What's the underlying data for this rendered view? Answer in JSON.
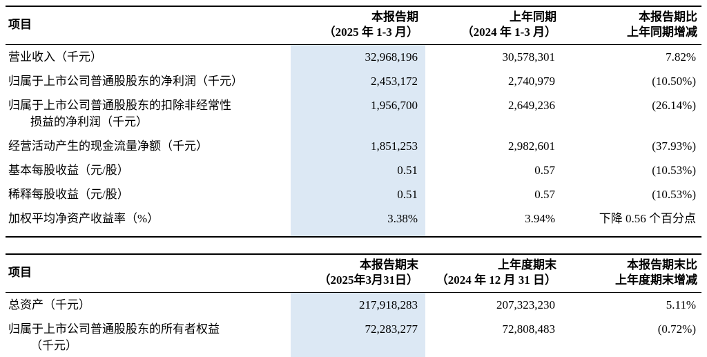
{
  "colors": {
    "highlight_column": "#dce8f4"
  },
  "table1": {
    "header": {
      "item": "项目",
      "current_line1": "本报告期",
      "current_line2": "（2025 年 1-3 月）",
      "prior_line1": "上年同期",
      "prior_line2": "（2024 年 1-3 月）",
      "change_line1": "本报告期比",
      "change_line2": "上年同期增减"
    },
    "rows": [
      {
        "label": "营业收入（千元）",
        "current": "32,968,196",
        "prior": "30,578,301",
        "change": "7.82%"
      },
      {
        "label": "归属于上市公司普通股股东的净利润（千元）",
        "current": "2,453,172",
        "prior": "2,740,979",
        "change": "(10.50%)"
      },
      {
        "label": "归属于上市公司普通股股东的扣除非经常性",
        "label2": "损益的净利润（千元）",
        "current": "1,956,700",
        "prior": "2,649,236",
        "change": "(26.14%)"
      },
      {
        "label": "经营活动产生的现金流量净额（千元）",
        "current": "1,851,253",
        "prior": "2,982,601",
        "change": "(37.93%)"
      },
      {
        "label": "基本每股收益（元/股）",
        "current": "0.51",
        "prior": "0.57",
        "change": "(10.53%)"
      },
      {
        "label": "稀释每股收益（元/股）",
        "current": "0.51",
        "prior": "0.57",
        "change": "(10.53%)"
      },
      {
        "label": "加权平均净资产收益率（%）",
        "current": "3.38%",
        "prior": "3.94%",
        "change": "下降 0.56 个百分点"
      }
    ]
  },
  "table2": {
    "header": {
      "item": "项目",
      "current_line1": "本报告期末",
      "current_line2": "（2025年3月31日）",
      "prior_line1": "上年度期末",
      "prior_line2": "（2024 年 12 月 31 日）",
      "change_line1": "本报告期末比",
      "change_line2": "上年度期末增减"
    },
    "rows": [
      {
        "label": "总资产（千元）",
        "current": "217,918,283",
        "prior": "207,323,230",
        "change": "5.11%"
      },
      {
        "label": "归属于上市公司普通股股东的所有者权益",
        "label2": "（千元）",
        "current": "72,283,277",
        "prior": "72,808,483",
        "change": "(0.72%)"
      }
    ]
  }
}
